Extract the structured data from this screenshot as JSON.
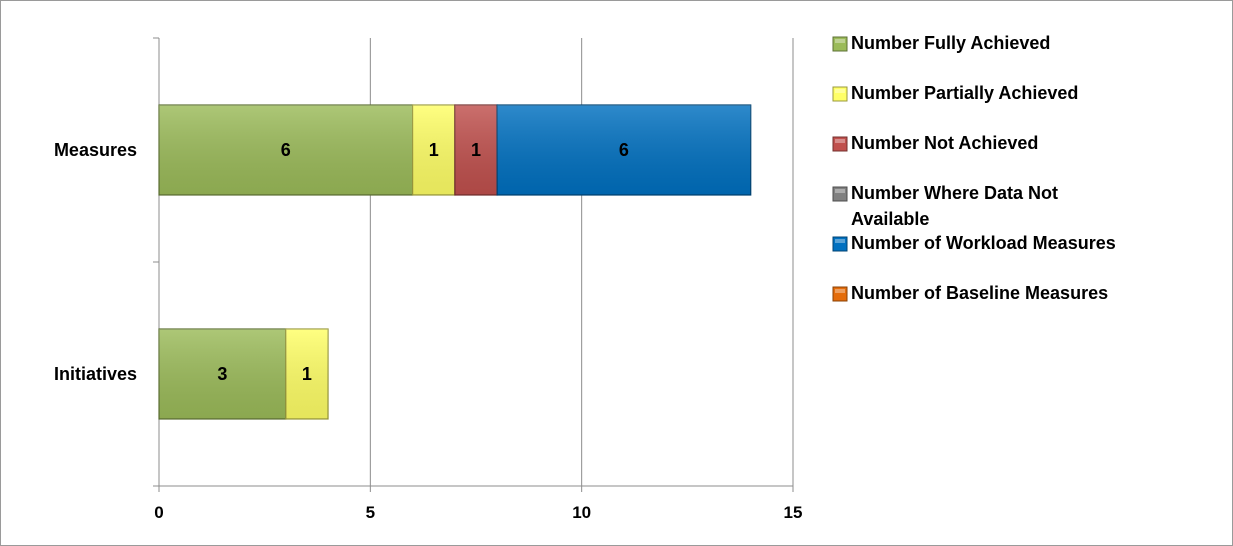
{
  "chart_data": {
    "type": "bar",
    "orientation": "horizontal",
    "stacked": true,
    "categories": [
      "Measures",
      "Initiatives"
    ],
    "series": [
      {
        "name": "Number Fully Achieved",
        "values": [
          6,
          3
        ],
        "color": "#9bbb59"
      },
      {
        "name": "Number Partially Achieved",
        "values": [
          1,
          1
        ],
        "color": "#ffff66"
      },
      {
        "name": "Number Not Achieved",
        "values": [
          1,
          0
        ],
        "color": "#c0504d"
      },
      {
        "name": "Number Where Data Not Available",
        "values": [
          0,
          0
        ],
        "color": "#808080"
      },
      {
        "name": "Number of Workload Measures",
        "values": [
          6,
          0
        ],
        "color": "#0070c0"
      },
      {
        "name": "Number of Baseline Measures",
        "values": [
          0,
          0
        ],
        "color": "#e46c0a"
      }
    ],
    "xlim": [
      0,
      15
    ],
    "xticks": [
      "0",
      "5",
      "10",
      "15"
    ],
    "xlabel": "",
    "ylabel": "",
    "title": "",
    "grid": "vertical",
    "legend_position": "right",
    "data_labels": true
  }
}
